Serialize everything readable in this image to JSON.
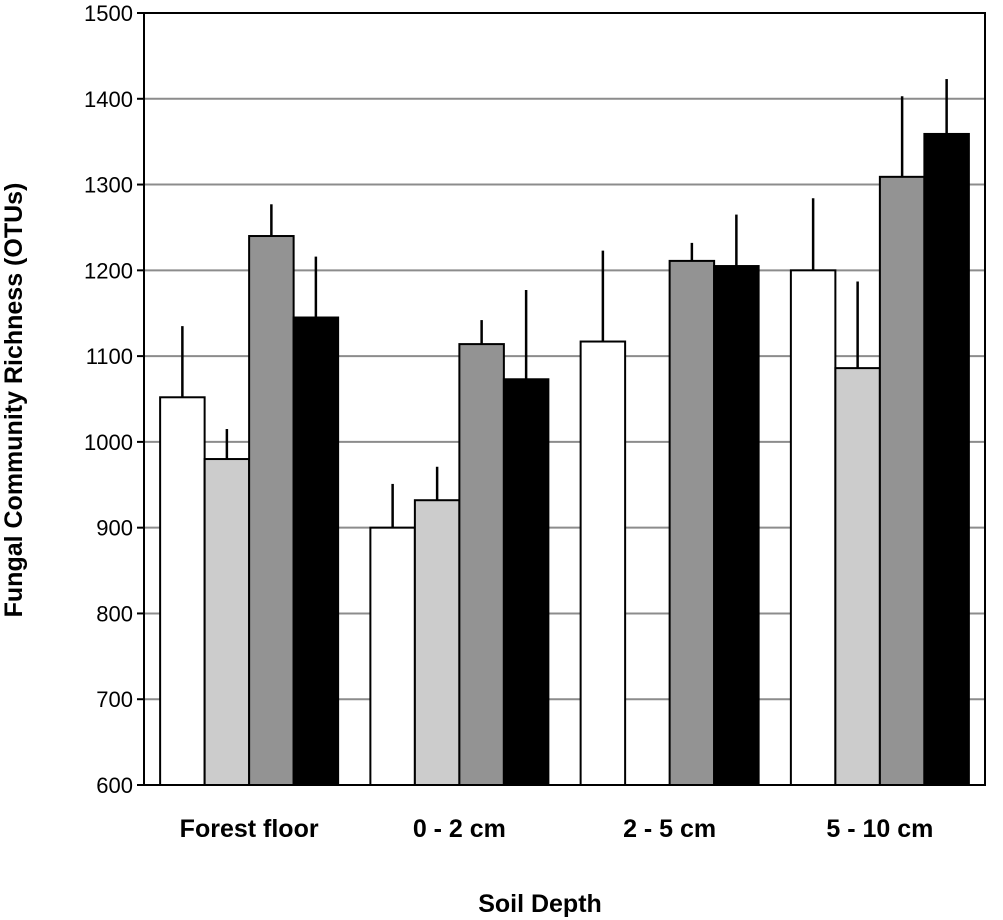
{
  "chart_data": {
    "type": "bar",
    "xlabel": "Soil Depth",
    "ylabel": "Fungal Community Richness (OTUs)",
    "ylim": [
      600,
      1500
    ],
    "yticks": [
      600,
      700,
      800,
      900,
      1000,
      1100,
      1200,
      1300,
      1400,
      1500
    ],
    "grid": true,
    "categories": [
      "Forest floor",
      "0 - 2 cm",
      "2 - 5 cm",
      "5 - 10 cm"
    ],
    "series": [
      {
        "color": "#ffffff",
        "values": [
          1052,
          900,
          1117,
          1200
        ],
        "errors": [
          83,
          51,
          106,
          84
        ]
      },
      {
        "color": "#cccccc",
        "values": [
          980,
          932,
          null,
          1086
        ],
        "errors": [
          35,
          39,
          null,
          101
        ]
      },
      {
        "color": "#939393",
        "values": [
          1240,
          1114,
          1211,
          1309
        ],
        "errors": [
          37,
          28,
          21,
          94
        ]
      },
      {
        "color": "#000000",
        "values": [
          1145,
          1073,
          1205,
          1359
        ],
        "errors": [
          71,
          104,
          60,
          64
        ]
      }
    ]
  }
}
